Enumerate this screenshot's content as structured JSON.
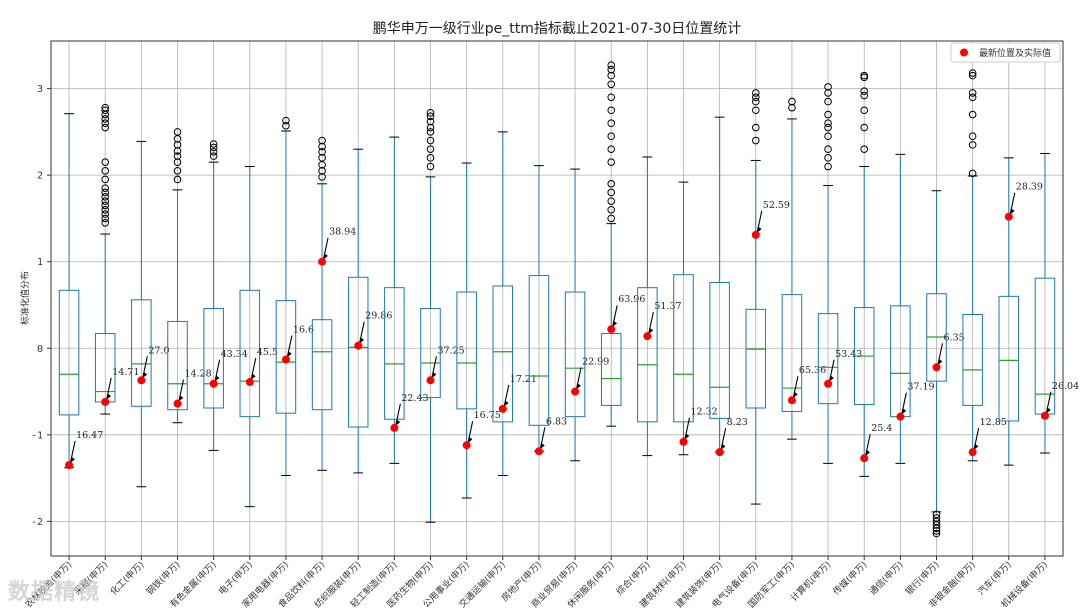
{
  "chart_data": {
    "type": "box",
    "title": "鹏华申万一级行业pe_ttm指标截止2021-07-30日位置统计",
    "ylabel": "标准化值分布",
    "xlabel": "",
    "ylim": [
      -2.4,
      3.55
    ],
    "yticks": [
      -2,
      -1,
      0,
      1,
      2,
      3
    ],
    "grid": true,
    "legend": {
      "label": "最新位置及实际值",
      "placement": "top-right"
    },
    "colors": {
      "box": "#1f77b4",
      "median": "#2ca02c",
      "point": "#ff0000",
      "flier": "#000000",
      "grid": "#b0b0b0"
    },
    "categories": [
      {
        "label": "农林牧渔(申万)",
        "q1": -0.77,
        "med": -0.3,
        "q3": 0.67,
        "wlo": -1.38,
        "whi": 2.71,
        "cur": -1.35,
        "val": "16.47",
        "fliers": []
      },
      {
        "label": "采掘(申万)",
        "q1": -0.62,
        "med": -0.5,
        "q3": 0.17,
        "wlo": -0.76,
        "whi": 1.32,
        "cur": -0.62,
        "val": "14.71",
        "fliers": [
          1.45,
          1.5,
          1.55,
          1.6,
          1.65,
          1.7,
          1.75,
          1.8,
          1.85,
          1.95,
          2.05,
          2.15,
          2.55,
          2.6,
          2.65,
          2.7,
          2.75,
          2.78
        ]
      },
      {
        "label": "化工(申万)",
        "q1": -0.67,
        "med": -0.18,
        "q3": 0.56,
        "wlo": -1.6,
        "whi": 2.39,
        "cur": -0.37,
        "val": "27.0",
        "fliers": []
      },
      {
        "label": "钢铁(申万)",
        "q1": -0.71,
        "med": -0.41,
        "q3": 0.31,
        "wlo": -0.86,
        "whi": 1.83,
        "cur": -0.64,
        "val": "14.28",
        "fliers": [
          1.95,
          2.05,
          2.15,
          2.22,
          2.28,
          2.35,
          2.42,
          2.5
        ]
      },
      {
        "label": "有色金属(申万)",
        "q1": -0.69,
        "med": -0.41,
        "q3": 0.46,
        "wlo": -1.18,
        "whi": 2.15,
        "cur": -0.41,
        "val": "43.34",
        "fliers": [
          2.22,
          2.27,
          2.32,
          2.36
        ]
      },
      {
        "label": "电子(申万)",
        "q1": -0.79,
        "med": -0.38,
        "q3": 0.67,
        "wlo": -1.83,
        "whi": 2.1,
        "cur": -0.39,
        "val": "45.5",
        "fliers": []
      },
      {
        "label": "家用电器(申万)",
        "q1": -0.75,
        "med": -0.16,
        "q3": 0.55,
        "wlo": -1.47,
        "whi": 2.51,
        "cur": -0.13,
        "val": "16.6",
        "fliers": [
          2.57,
          2.63
        ]
      },
      {
        "label": "食品饮料(申万)",
        "q1": -0.71,
        "med": -0.04,
        "q3": 0.33,
        "wlo": -1.41,
        "whi": 1.9,
        "cur": 1.0,
        "val": "38.94",
        "fliers": [
          1.98,
          2.05,
          2.12,
          2.2,
          2.27,
          2.33,
          2.4
        ]
      },
      {
        "label": "纺织服装(申万)",
        "q1": -0.91,
        "med": 0.01,
        "q3": 0.82,
        "wlo": -1.44,
        "whi": 2.3,
        "cur": 0.03,
        "val": "29.86",
        "fliers": []
      },
      {
        "label": "轻工制造(申万)",
        "q1": -0.82,
        "med": -0.18,
        "q3": 0.7,
        "wlo": -1.33,
        "whi": 2.44,
        "cur": -0.92,
        "val": "22.43",
        "fliers": []
      },
      {
        "label": "医药生物(申万)",
        "q1": -0.57,
        "med": -0.17,
        "q3": 0.46,
        "wlo": -2.01,
        "whi": 1.98,
        "cur": -0.37,
        "val": "37.25",
        "fliers": [
          2.1,
          2.2,
          2.3,
          2.4,
          2.5,
          2.55,
          2.62,
          2.68,
          2.72
        ]
      },
      {
        "label": "公用事业(申万)",
        "q1": -0.7,
        "med": -0.17,
        "q3": 0.65,
        "wlo": -1.73,
        "whi": 2.14,
        "cur": -1.12,
        "val": "16.75",
        "fliers": []
      },
      {
        "label": "交通运输(申万)",
        "q1": -0.85,
        "med": -0.04,
        "q3": 0.72,
        "wlo": -1.47,
        "whi": 2.5,
        "cur": -0.7,
        "val": "17.21",
        "fliers": []
      },
      {
        "label": "房地产(申万)",
        "q1": -0.89,
        "med": -0.32,
        "q3": 0.84,
        "wlo": -1.19,
        "whi": 2.11,
        "cur": -1.19,
        "val": "6.83",
        "fliers": []
      },
      {
        "label": "商业贸易(申万)",
        "q1": -0.79,
        "med": -0.23,
        "q3": 0.65,
        "wlo": -1.3,
        "whi": 2.07,
        "cur": -0.5,
        "val": "22.99",
        "fliers": []
      },
      {
        "label": "休闲服务(申万)",
        "q1": -0.66,
        "med": -0.35,
        "q3": 0.17,
        "wlo": -0.9,
        "whi": 1.44,
        "cur": 0.22,
        "val": "63.96",
        "fliers": [
          1.5,
          1.6,
          1.7,
          1.8,
          1.9,
          2.15,
          2.3,
          2.45,
          2.6,
          2.75,
          2.9,
          3.05,
          3.15,
          3.22,
          3.27
        ]
      },
      {
        "label": "综合(申万)",
        "q1": -0.85,
        "med": -0.19,
        "q3": 0.7,
        "wlo": -1.24,
        "whi": 2.21,
        "cur": 0.14,
        "val": "51.37",
        "fliers": []
      },
      {
        "label": "建筑材料(申万)",
        "q1": -0.85,
        "med": -0.3,
        "q3": 0.85,
        "wlo": -1.23,
        "whi": 1.92,
        "cur": -1.08,
        "val": "12.32",
        "fliers": []
      },
      {
        "label": "建筑装饰(申万)",
        "q1": -0.81,
        "med": -0.45,
        "q3": 0.76,
        "wlo": -1.2,
        "whi": 2.67,
        "cur": -1.2,
        "val": "8.23",
        "fliers": []
      },
      {
        "label": "电气设备(申万)",
        "q1": -0.69,
        "med": -0.01,
        "q3": 0.45,
        "wlo": -1.8,
        "whi": 2.17,
        "cur": 1.31,
        "val": "52.59",
        "fliers": [
          2.4,
          2.55,
          2.75,
          2.85,
          2.9,
          2.95
        ]
      },
      {
        "label": "国防军工(申万)",
        "q1": -0.73,
        "med": -0.46,
        "q3": 0.62,
        "wlo": -1.05,
        "whi": 2.65,
        "cur": -0.6,
        "val": "65.36",
        "fliers": [
          2.78,
          2.85
        ]
      },
      {
        "label": "计算机(申万)",
        "q1": -0.64,
        "med": -0.22,
        "q3": 0.4,
        "wlo": -1.33,
        "whi": 1.88,
        "cur": -0.41,
        "val": "53.43",
        "fliers": [
          2.1,
          2.2,
          2.3,
          2.45,
          2.55,
          2.6,
          2.7,
          2.85,
          2.95,
          3.02
        ]
      },
      {
        "label": "传媒(申万)",
        "q1": -0.65,
        "med": -0.09,
        "q3": 0.47,
        "wlo": -1.48,
        "whi": 2.1,
        "cur": -1.27,
        "val": "25.4",
        "fliers": [
          2.3,
          2.55,
          2.75,
          2.92,
          2.97,
          3.13,
          3.15
        ]
      },
      {
        "label": "通信(申万)",
        "q1": -0.79,
        "med": -0.29,
        "q3": 0.49,
        "wlo": -1.33,
        "whi": 2.24,
        "cur": -0.79,
        "val": "37.19",
        "fliers": []
      },
      {
        "label": "银行(申万)",
        "q1": -0.38,
        "med": 0.13,
        "q3": 0.63,
        "wlo": -1.89,
        "whi": 1.82,
        "cur": -0.22,
        "val": "6.35",
        "fliers": [
          -1.92,
          -1.96,
          -2.0,
          -2.04,
          -2.08,
          -2.11,
          -2.14
        ]
      },
      {
        "label": "非银金融(申万)",
        "q1": -0.66,
        "med": -0.25,
        "q3": 0.39,
        "wlo": -1.3,
        "whi": 1.99,
        "cur": -1.2,
        "val": "12.85",
        "fliers": [
          2.02,
          2.35,
          2.45,
          2.7,
          2.9,
          2.95,
          3.15,
          3.18
        ]
      },
      {
        "label": "汽车(申万)",
        "q1": -0.84,
        "med": -0.14,
        "q3": 0.6,
        "wlo": -1.35,
        "whi": 2.2,
        "cur": 1.52,
        "val": "28.39",
        "fliers": []
      },
      {
        "label": "机械设备(申万)",
        "q1": -0.76,
        "med": -0.53,
        "q3": 0.81,
        "wlo": -1.21,
        "whi": 2.25,
        "cur": -0.78,
        "val": "26.04",
        "fliers": []
      }
    ]
  },
  "watermark": "数据精镜"
}
